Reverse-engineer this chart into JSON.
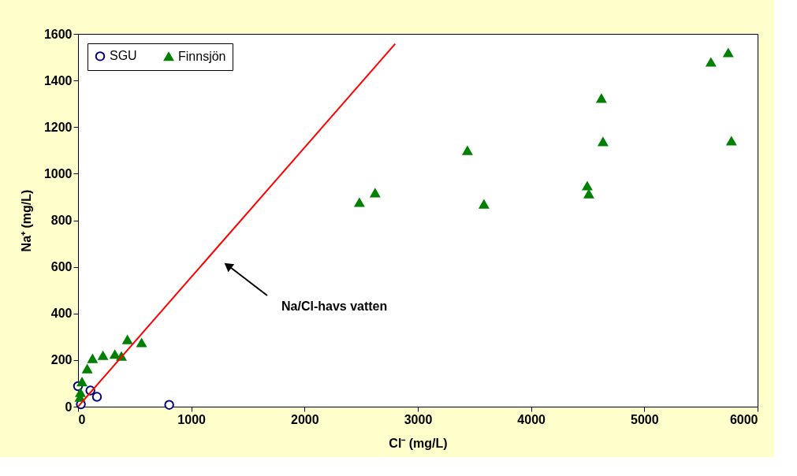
{
  "chart_data": {
    "type": "scatter",
    "xlabel": "Cl⁻ (mg/L)",
    "ylabel": "Na⁺ (mg/L)",
    "xlim": [
      0,
      6000
    ],
    "xticks": [
      0,
      1000,
      2000,
      3000,
      4000,
      5000,
      6000
    ],
    "ylim": [
      0,
      1600
    ],
    "yticks": [
      0,
      200,
      400,
      600,
      800,
      1000,
      1200,
      1400,
      1600
    ],
    "grid": false,
    "legend": "top left",
    "series": [
      {
        "name": "SGU",
        "color": "#000080",
        "marker": "circle",
        "x": [
          25,
          0,
          109,
          167,
          805
        ],
        "values": [
          10,
          88,
          69,
          42,
          8
        ]
      },
      {
        "name": "Finnsjön",
        "color": "#008000",
        "marker": "triangle",
        "x": [
          17,
          21,
          35,
          81,
          128,
          220,
          325,
          383,
          436,
          561,
          2484,
          2623,
          3438,
          3584,
          4496,
          4510,
          4621,
          4635,
          5588,
          5741,
          5769
        ],
        "values": [
          40,
          60,
          106,
          162,
          206,
          219,
          224,
          216,
          287,
          274,
          876,
          917,
          1099,
          869,
          947,
          913,
          1323,
          1137,
          1478,
          1519,
          1140
        ]
      },
      {
        "type": "line",
        "color": "#ff0000",
        "x": [
          0,
          2800
        ],
        "values": [
          0,
          1557
        ]
      }
    ],
    "annotations": [
      "Na/Cl-havs vatten"
    ]
  }
}
